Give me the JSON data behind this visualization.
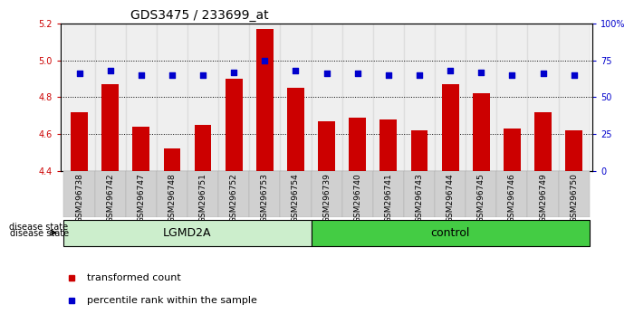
{
  "title": "GDS3475 / 233699_at",
  "samples": [
    "GSM296738",
    "GSM296742",
    "GSM296747",
    "GSM296748",
    "GSM296751",
    "GSM296752",
    "GSM296753",
    "GSM296754",
    "GSM296739",
    "GSM296740",
    "GSM296741",
    "GSM296743",
    "GSM296744",
    "GSM296745",
    "GSM296746",
    "GSM296749",
    "GSM296750"
  ],
  "bar_values": [
    4.72,
    4.87,
    4.64,
    4.52,
    4.65,
    4.9,
    5.17,
    4.85,
    4.67,
    4.69,
    4.68,
    4.62,
    4.87,
    4.82,
    4.63,
    4.72,
    4.62
  ],
  "percentile_values": [
    66,
    68,
    65,
    65,
    65,
    67,
    75,
    68,
    66,
    66,
    65,
    65,
    68,
    67,
    65,
    66,
    65
  ],
  "bar_color": "#cc0000",
  "dot_color": "#0000cc",
  "ylim_left": [
    4.4,
    5.2
  ],
  "ylim_right": [
    0,
    100
  ],
  "yticks_left": [
    4.4,
    4.6,
    4.8,
    5.0,
    5.2
  ],
  "yticks_right": [
    0,
    25,
    50,
    75,
    100
  ],
  "ytick_labels_right": [
    "0",
    "25",
    "50",
    "75",
    "100%"
  ],
  "lgmd2a_count": 8,
  "lgmd2a_color": "#cceecc",
  "control_color": "#44cc44",
  "group_label": "disease state",
  "legend_bar_label": "transformed count",
  "legend_dot_label": "percentile rank within the sample",
  "title_fontsize": 10,
  "axis_tick_fontsize": 7,
  "sample_tick_fontsize": 6.5,
  "group_fontsize": 9,
  "legend_fontsize": 8,
  "bar_width": 0.55
}
